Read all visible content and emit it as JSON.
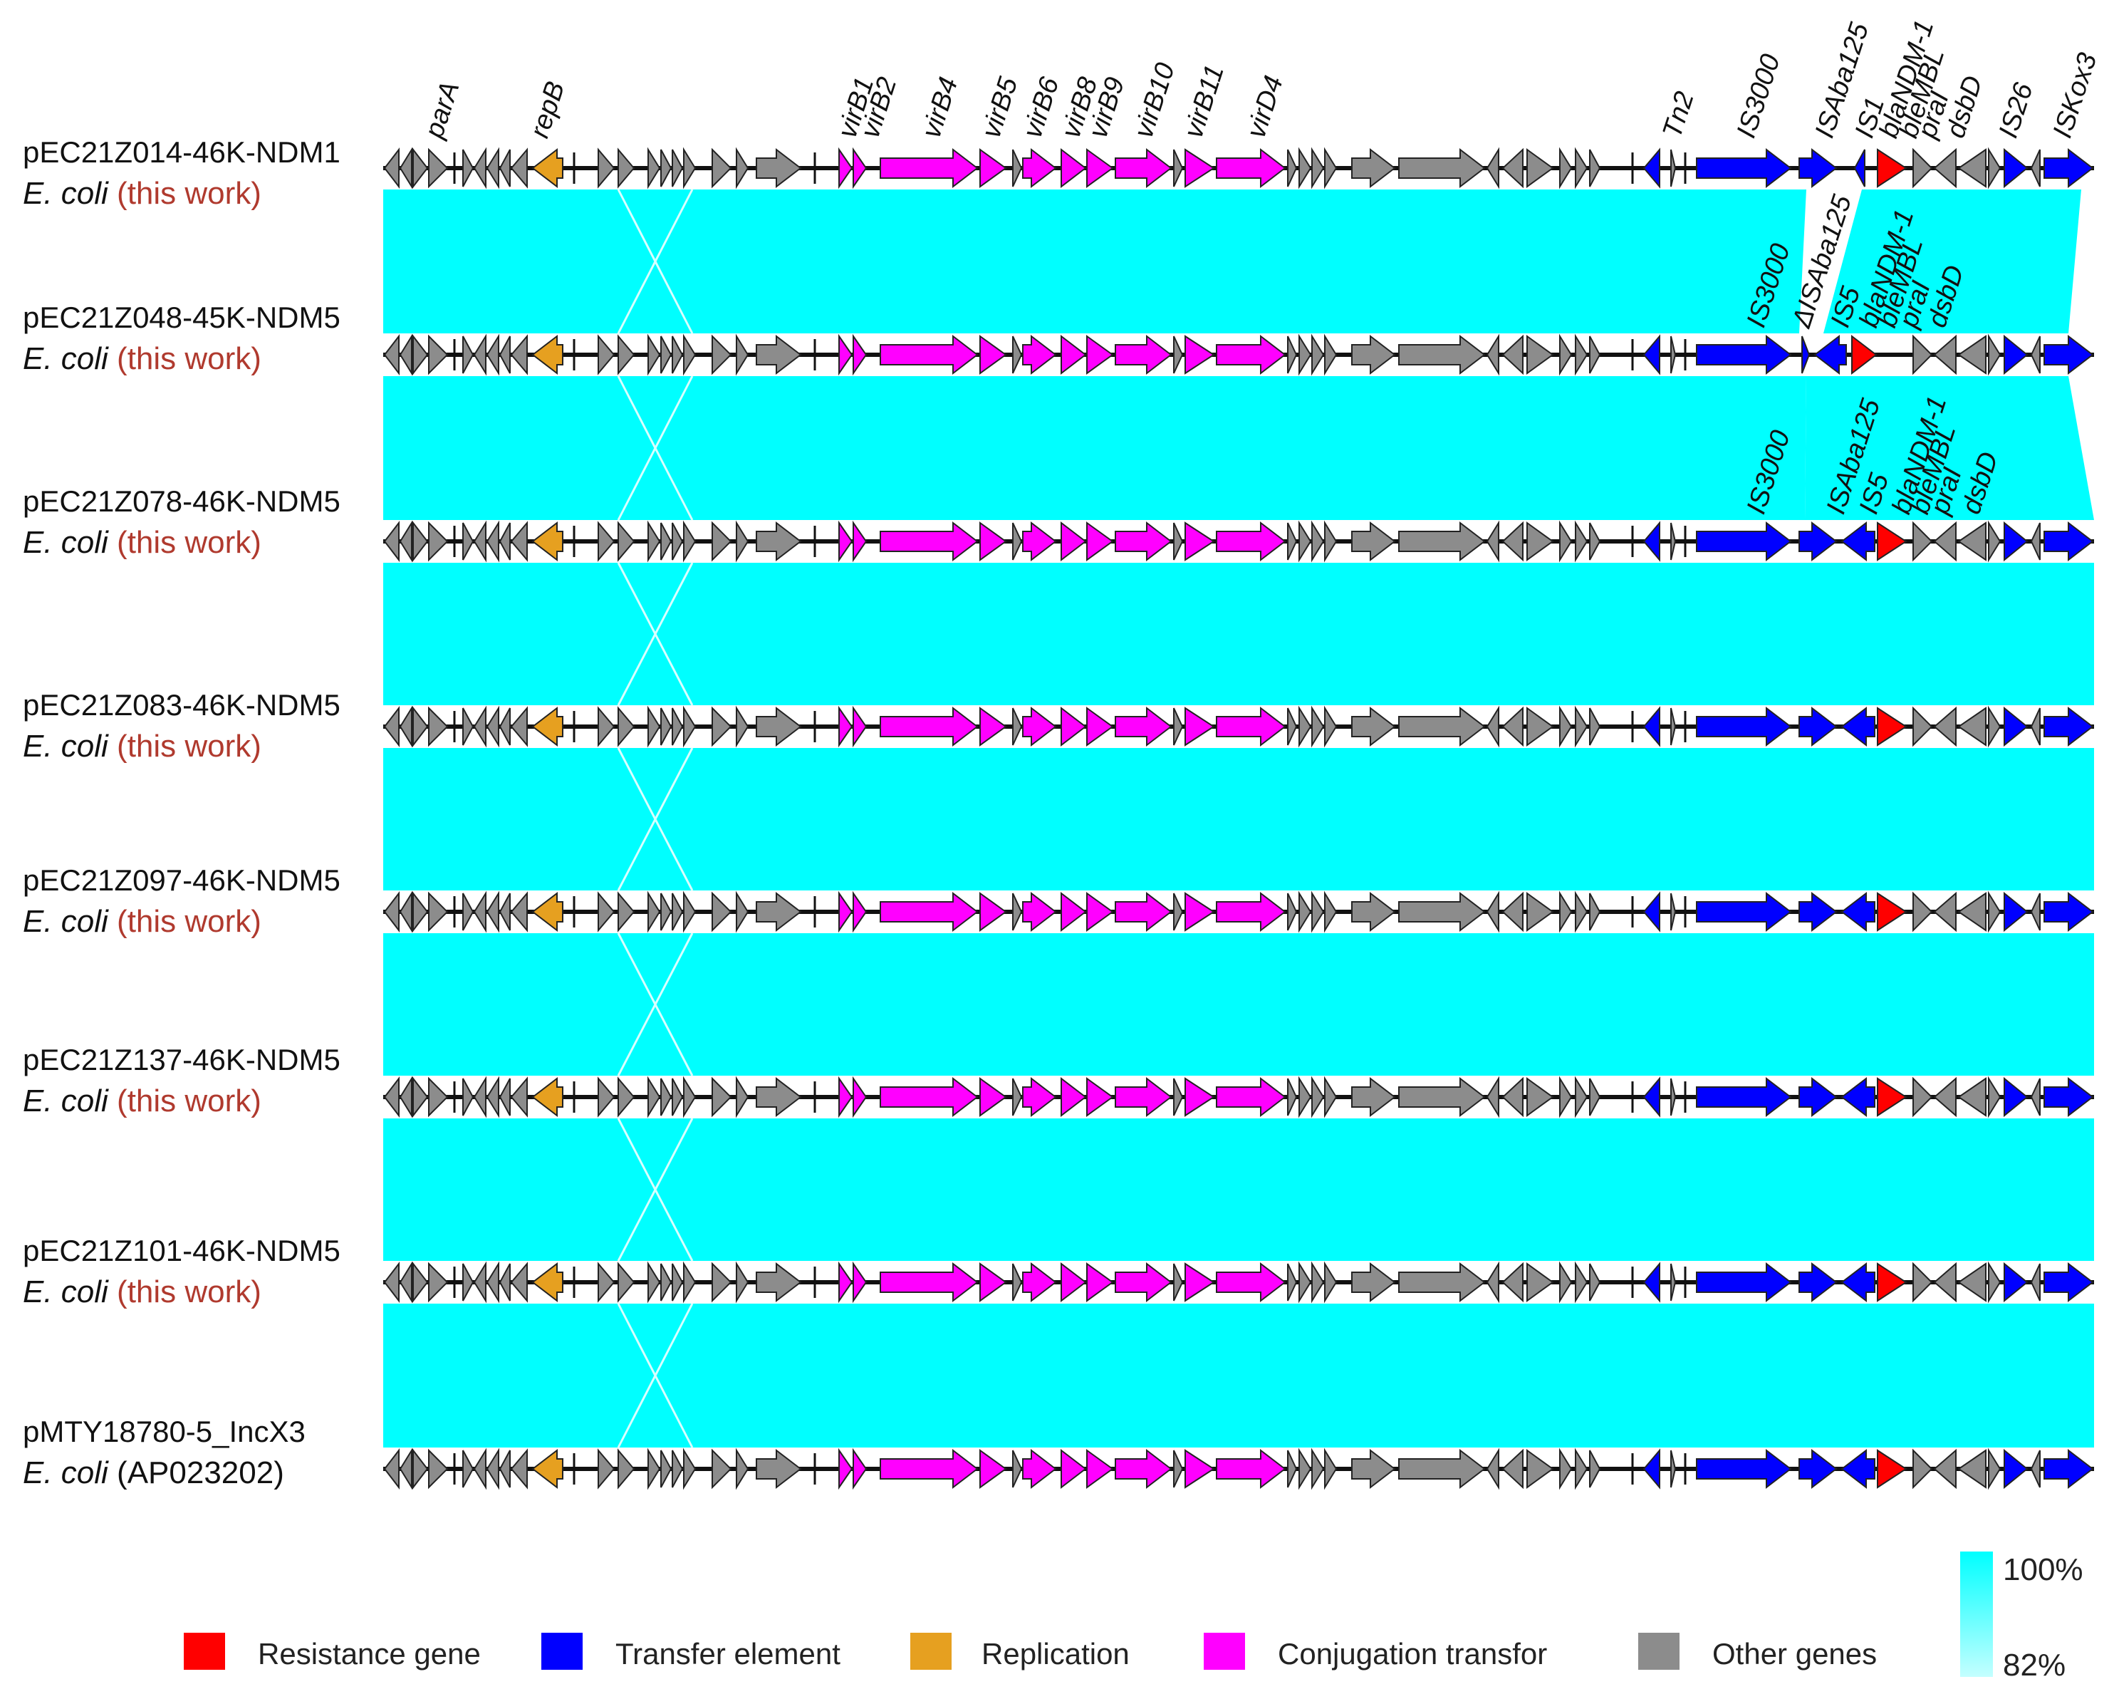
{
  "colors": {
    "resistance": "#ff0000",
    "transfer": "#0000ff",
    "replication": "#e6a020",
    "conjugation": "#ff00ff",
    "other": "#8c8c8c",
    "identity_high": "#00ffff",
    "identity_low": "#b8ffff",
    "source_red": "#b03a2e"
  },
  "plasmids": [
    {
      "name": "pEC21Z014-46K-NDM1",
      "host": "E. coli",
      "source": "(this work)"
    },
    {
      "name": "pEC21Z048-45K-NDM5",
      "host": "E. coli",
      "source": "(this work)"
    },
    {
      "name": "pEC21Z078-46K-NDM5",
      "host": "E. coli",
      "source": "(this work)"
    },
    {
      "name": "pEC21Z083-46K-NDM5",
      "host": "E. coli",
      "source": "(this work)"
    },
    {
      "name": "pEC21Z097-46K-NDM5",
      "host": "E. coli",
      "source": "(this work)"
    },
    {
      "name": "pEC21Z137-46K-NDM5",
      "host": "E. coli",
      "source": "(this work)"
    },
    {
      "name": "pEC21Z101-46K-NDM5",
      "host": "E. coli",
      "source": "(this work)"
    },
    {
      "name": "pMTY18780-5_IncX3",
      "host": "E. coli",
      "source": "(AP023202)"
    }
  ],
  "gene_labels_top": [
    "parA",
    "repB",
    "virB1",
    "virB2",
    "virB4",
    "virB5",
    "virB6",
    "virB8",
    "virB9",
    "virB10",
    "virB11",
    "virD4",
    "Tn2",
    "IS3000",
    "ISAba125",
    "IS1",
    "blaNDM-1",
    "bleMBL",
    "praI",
    "dsbD",
    "IS26",
    "ISKox3"
  ],
  "gene_labels_row2": [
    "IS3000",
    "ΔISAba125",
    "IS5",
    "blaNDM-1",
    "bleMBL",
    "praI",
    "dsbD"
  ],
  "gene_labels_row3": [
    "IS3000",
    "ISAba125",
    "IS5",
    "blaNDM-1",
    "bleMBL",
    "praI",
    "dsbD"
  ],
  "legend": [
    {
      "label": "Resistance gene",
      "key": "resistance"
    },
    {
      "label": "Transfer element",
      "key": "transfer"
    },
    {
      "label": "Replication",
      "key": "replication"
    },
    {
      "label": "Conjugation transfor",
      "key": "conjugation"
    },
    {
      "label": "Other genes",
      "key": "other"
    }
  ],
  "identity_scale": {
    "max_label": "100%",
    "min_label": "82%"
  }
}
